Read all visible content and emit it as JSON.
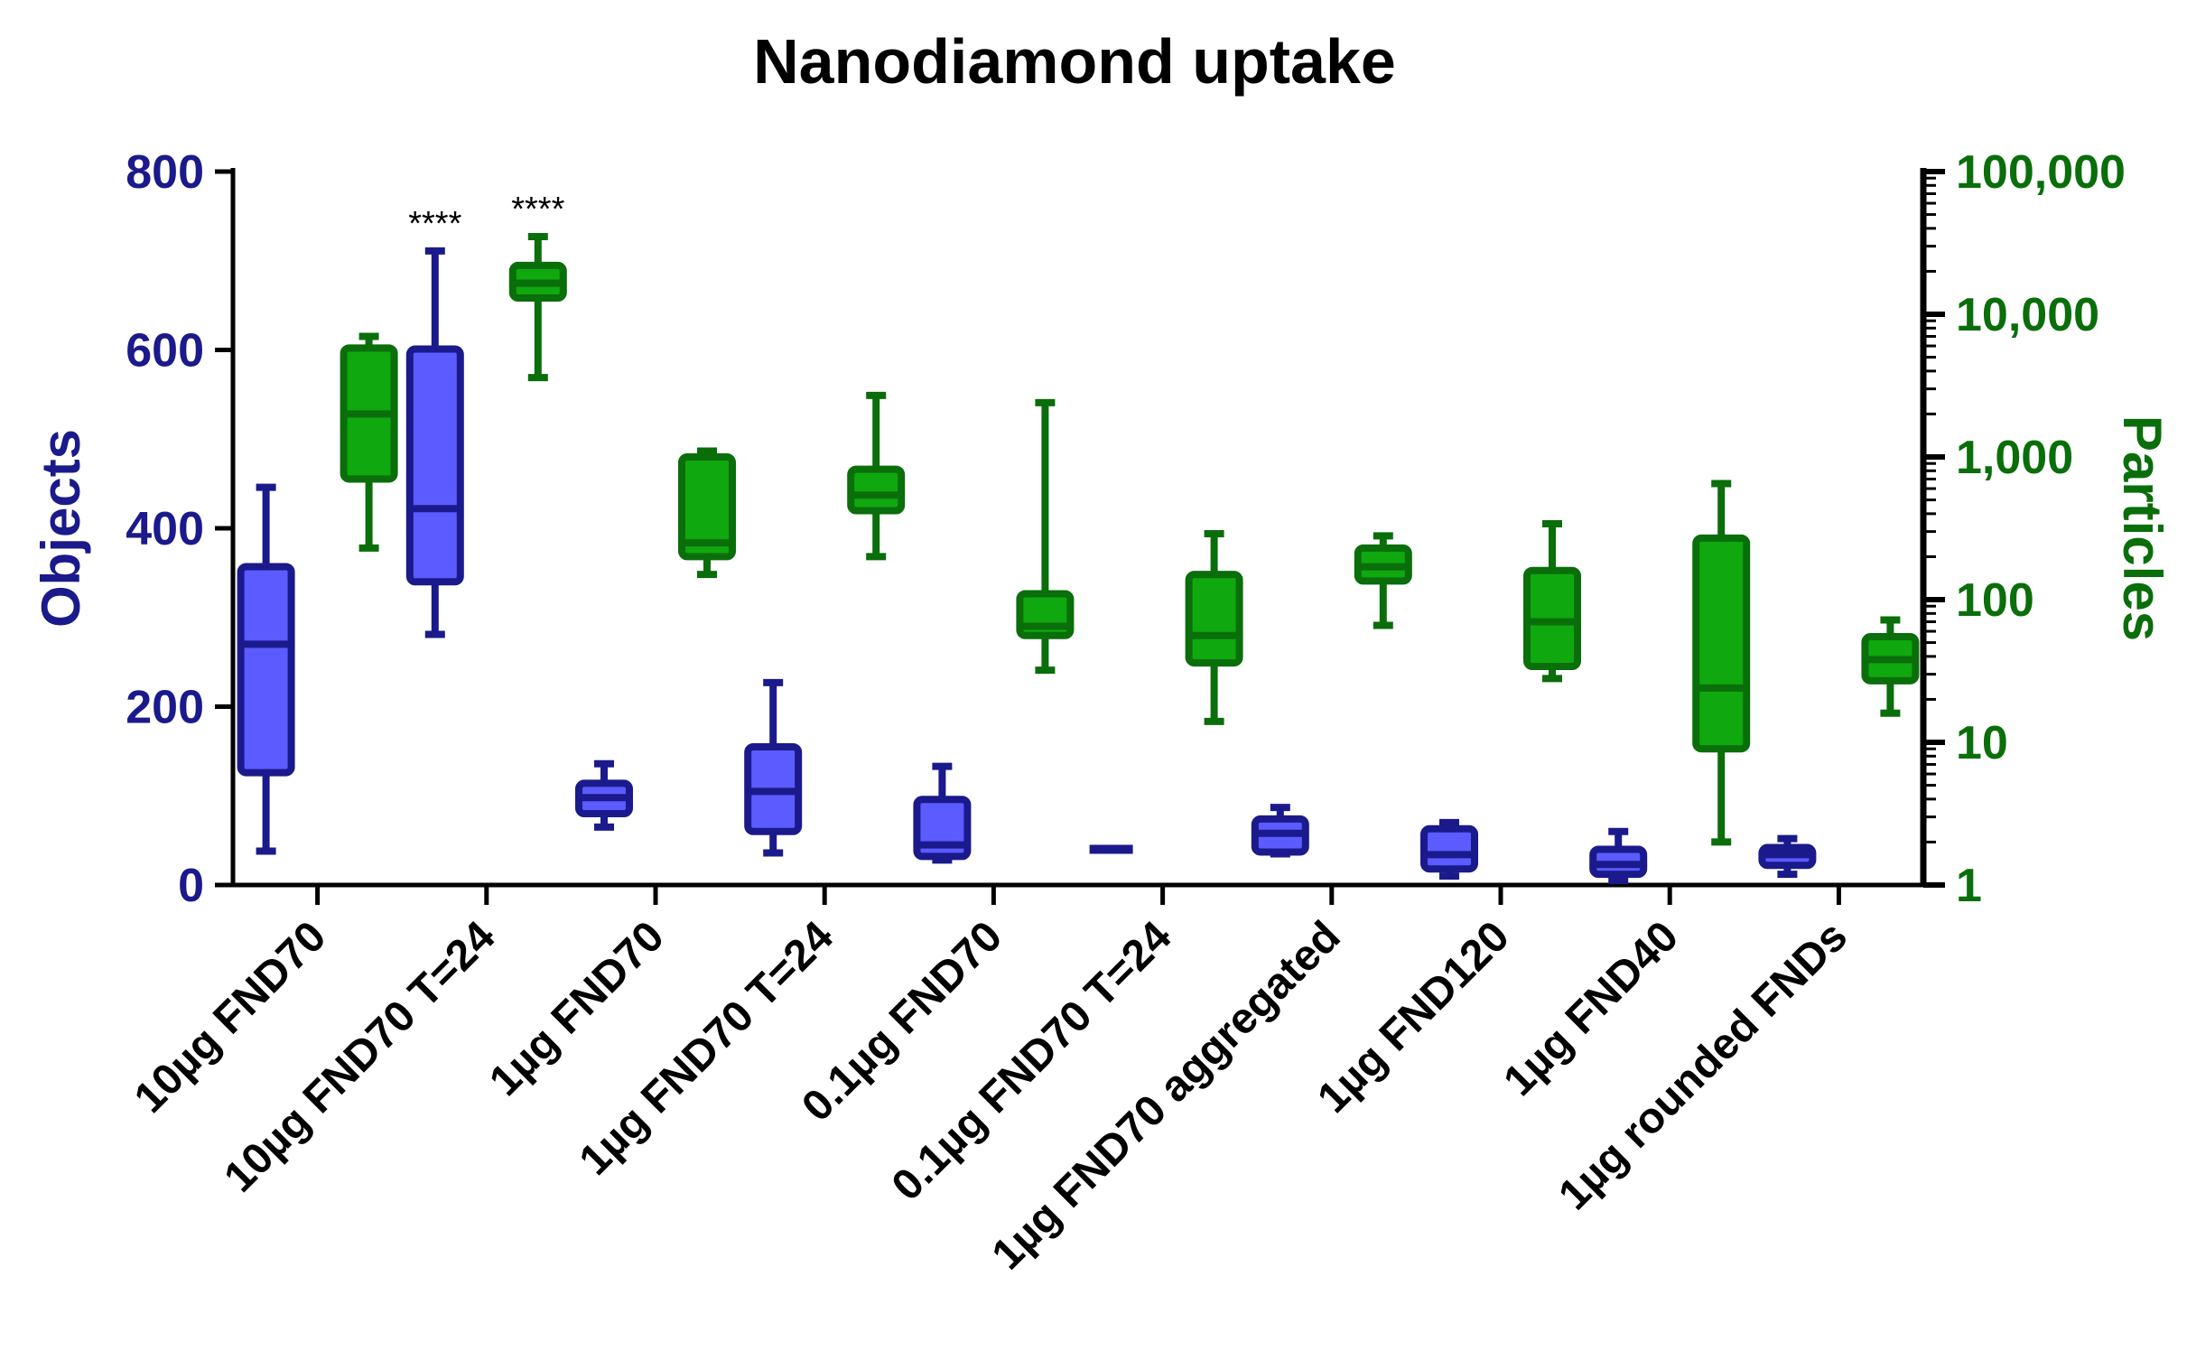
{
  "chart_data": {
    "type": "box",
    "title": "Nanodiamond uptake",
    "categories": [
      "10µg FND70",
      "10µg FND70 T=24",
      "1µg FND70",
      "1µg FND70 T=24",
      "0.1µg FND70",
      "0.1µg FND70 T=24",
      "1µg FND70 aggregated",
      "1µg FND120",
      "1µg FND40",
      "1µg rounded FNDs"
    ],
    "y_left": {
      "label": "Objects",
      "scale": "linear",
      "range": [
        0,
        800
      ],
      "ticks": [
        0,
        200,
        400,
        600,
        800
      ],
      "tick_labels": [
        "0",
        "200",
        "400",
        "600",
        "800"
      ],
      "color": "#1a1a8c"
    },
    "y_right": {
      "label": "Particles",
      "scale": "log",
      "range": [
        1,
        100000
      ],
      "ticks": [
        1,
        10,
        100,
        1000,
        10000,
        100000
      ],
      "tick_labels": [
        "1",
        "10",
        "100",
        "1,000",
        "10,000",
        "100,000"
      ],
      "color": "#0a6e0a"
    },
    "series": [
      {
        "name": "Objects",
        "axis": "left",
        "fill": "#5b5bff",
        "stroke": "#1a1a8c",
        "boxes": [
          {
            "min": 38,
            "q1": 126,
            "median": 270,
            "q3": 357,
            "max": 446
          },
          {
            "min": 281,
            "q1": 340,
            "median": 422,
            "q3": 601,
            "max": 711
          },
          {
            "min": 65,
            "q1": 80,
            "median": 98,
            "q3": 114,
            "max": 136
          },
          {
            "min": 36,
            "q1": 60,
            "median": 105,
            "q3": 155,
            "max": 227
          },
          {
            "min": 28,
            "q1": 32,
            "median": 45,
            "q3": 96,
            "max": 133
          },
          {
            "min": 40,
            "q1": 40,
            "median": 40,
            "q3": 40,
            "max": 40
          },
          {
            "min": 35,
            "q1": 37,
            "median": 58,
            "q3": 74,
            "max": 87
          },
          {
            "min": 10,
            "q1": 18,
            "median": 34,
            "q3": 63,
            "max": 70
          },
          {
            "min": 5,
            "q1": 12,
            "median": 23,
            "q3": 40,
            "max": 60
          },
          {
            "min": 12,
            "q1": 22,
            "median": 34,
            "q3": 42,
            "max": 52
          }
        ]
      },
      {
        "name": "Particles",
        "axis": "right",
        "fill": "#0fa80f",
        "stroke": "#0a6e0a",
        "boxes": [
          {
            "min": 230,
            "q1": 700,
            "median": 2000,
            "q3": 5800,
            "max": 7000
          },
          {
            "min": 3600,
            "q1": 13000,
            "median": 16500,
            "q3": 22000,
            "max": 35000
          },
          {
            "min": 150,
            "q1": 200,
            "median": 250,
            "q3": 1000,
            "max": 1100
          },
          {
            "min": 200,
            "q1": 420,
            "median": 540,
            "q3": 820,
            "max": 2700
          },
          {
            "min": 32,
            "q1": 56,
            "median": 65,
            "q3": 110,
            "max": 2400
          },
          {
            "min": 14,
            "q1": 36,
            "median": 56,
            "q3": 150,
            "max": 290
          },
          {
            "min": 66,
            "q1": 135,
            "median": 170,
            "q3": 230,
            "max": 280
          },
          {
            "min": 28,
            "q1": 34,
            "median": 70,
            "q3": 160,
            "max": 340
          },
          {
            "min": 2,
            "q1": 9,
            "median": 24,
            "q3": 270,
            "max": 650
          },
          {
            "min": 16,
            "q1": 27,
            "median": 38,
            "q3": 55,
            "max": 72
          }
        ]
      }
    ],
    "annotations": [
      {
        "text": "****",
        "series": "Objects",
        "category": "10µg FND70 T=24"
      },
      {
        "text": "****",
        "series": "Particles",
        "category": "10µg FND70 T=24"
      }
    ]
  }
}
